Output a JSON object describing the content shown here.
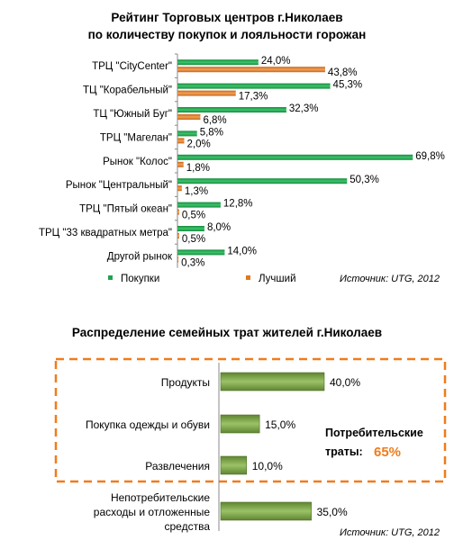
{
  "chart_data": [
    {
      "type": "bar",
      "orientation": "horizontal",
      "title": [
        "Рейтинг Торговых центров г.Николаев",
        "по количеству покупок и лояльности горожан"
      ],
      "categories": [
        "ТРЦ \"CityCenter\"",
        "ТЦ  \"Корабельный\"",
        "ТЦ \"Южный Буг\"",
        "ТРЦ \"Магелан\"",
        "Рынок \"Колос\"",
        "Рынок \"Центральный\"",
        "ТРЦ \"Пятый океан\"",
        "ТРЦ \"33 квадратных метра\"",
        "Другой рынок"
      ],
      "series": [
        {
          "name": "Покупки",
          "color": "#21a450",
          "values": [
            24.0,
            45.3,
            32.3,
            5.8,
            69.8,
            50.3,
            12.8,
            8.0,
            14.0
          ],
          "labels": [
            "24,0%",
            "45,3%",
            "32,3%",
            "5,8%",
            "69,8%",
            "50,3%",
            "12,8%",
            "8,0%",
            "14,0%"
          ]
        },
        {
          "name": "Лучший",
          "color": "#e07a1e",
          "values": [
            43.8,
            17.3,
            6.8,
            2.0,
            1.8,
            1.3,
            0.5,
            0.5,
            0.3
          ],
          "labels": [
            "43,8%",
            "17,3%",
            "6,8%",
            "2,0%",
            "1,8%",
            "1,3%",
            "0,5%",
            "0,5%",
            "0,3%"
          ]
        }
      ],
      "xlim": [
        0,
        70
      ],
      "legend": "bottom-left",
      "source": "Источник: UTG, 2012"
    },
    {
      "type": "bar",
      "orientation": "horizontal",
      "title": "Распределение семейных трат жителей г.Николаев",
      "categories": [
        [
          "Продукты"
        ],
        [
          "Покупка одежды и обуви"
        ],
        [
          "Развлечения"
        ],
        [
          "Непотребительские",
          "расходы и отложенные",
          "средства"
        ]
      ],
      "values": [
        40.0,
        15.0,
        10.0,
        35.0
      ],
      "labels": [
        "40,0%",
        "15,0%",
        "10,0%",
        "35,0%"
      ],
      "bar_color": "#7fa34a",
      "xlim": [
        0,
        40
      ],
      "annotation": {
        "text": "Потребительские",
        "text2": "траты:",
        "value": "65%",
        "value_color": "#f07c1a",
        "box_color": "#f07c1a"
      },
      "source": "Источник: UTG, 2012"
    }
  ]
}
